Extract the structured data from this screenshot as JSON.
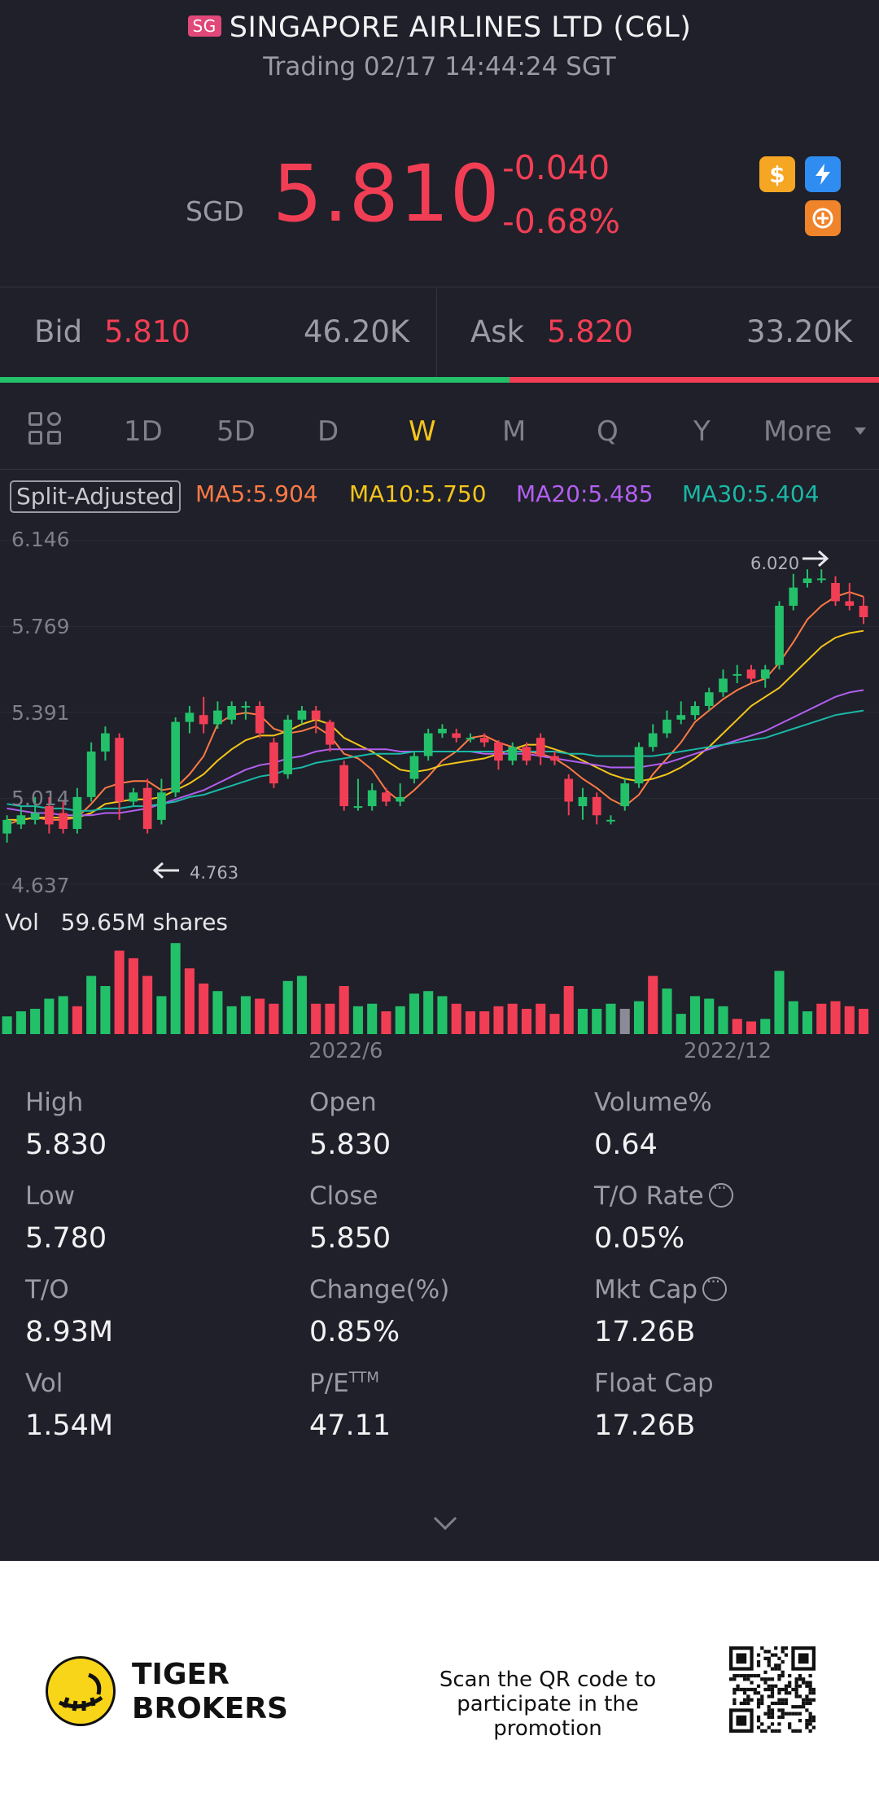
{
  "header": {
    "exchange_badge": "SG",
    "title": "SINGAPORE AIRLINES LTD (C6L)",
    "subtitle": "Trading 02/17 14:44:24 SGT"
  },
  "quote": {
    "currency": "SGD",
    "price": "5.810",
    "change": "-0.040",
    "change_pct": "-0.68%",
    "icons": [
      "dollar-icon",
      "flash-icon",
      "short-sell-icon"
    ]
  },
  "orderbook": {
    "bid_label": "Bid",
    "bid_price": "5.810",
    "bid_size": "46.20K",
    "ask_label": "Ask",
    "ask_price": "5.820",
    "ask_size": "33.20K",
    "bid_ratio": 0.58
  },
  "tabs": {
    "items": [
      "1D",
      "5D",
      "D",
      "W",
      "M",
      "Q",
      "Y"
    ],
    "active": "W",
    "more_label": "More"
  },
  "indicators": {
    "split_label": "Split-Adjusted",
    "ma5": "MA5:5.904",
    "ma10": "MA10:5.750",
    "ma20": "MA20:5.485",
    "ma30": "MA30:5.404"
  },
  "chart_labels": {
    "y_ticks": [
      "6.146",
      "5.769",
      "5.391",
      "5.014",
      "4.637"
    ],
    "high_marker": "6.020",
    "low_marker": "4.763",
    "vol_label": "Vol",
    "vol_value": "59.65M shares",
    "x_ticks": [
      "2022/6",
      "2022/12"
    ]
  },
  "chart_data": {
    "type": "candlestick",
    "ylim": [
      4.637,
      6.146
    ],
    "y_ticks": [
      6.146,
      5.769,
      5.391,
      5.014,
      4.637
    ],
    "x_ticks": [
      "2022/6",
      "2022/12"
    ],
    "candles": [
      [
        4.86,
        4.92,
        4.82,
        4.94
      ],
      [
        4.9,
        4.94,
        4.88,
        4.98
      ],
      [
        4.92,
        4.95,
        4.9,
        5.02
      ],
      [
        4.98,
        4.9,
        4.86,
        5.02
      ],
      [
        4.95,
        4.88,
        4.86,
        5.0
      ],
      [
        4.88,
        5.02,
        4.86,
        5.06
      ],
      [
        5.02,
        5.22,
        5.0,
        5.26
      ],
      [
        5.22,
        5.3,
        5.18,
        5.33
      ],
      [
        5.28,
        5.0,
        4.92,
        5.3
      ],
      [
        5.0,
        5.04,
        4.98,
        5.06
      ],
      [
        5.06,
        4.88,
        4.86,
        5.1
      ],
      [
        4.92,
        5.04,
        4.9,
        5.1
      ],
      [
        5.04,
        5.35,
        5.02,
        5.37
      ],
      [
        5.35,
        5.39,
        5.3,
        5.42
      ],
      [
        5.38,
        5.34,
        5.3,
        5.46
      ],
      [
        5.34,
        5.4,
        5.32,
        5.44
      ],
      [
        5.36,
        5.42,
        5.34,
        5.44
      ],
      [
        5.42,
        5.42,
        5.36,
        5.44
      ],
      [
        5.42,
        5.3,
        5.28,
        5.44
      ],
      [
        5.26,
        5.08,
        5.06,
        5.28
      ],
      [
        5.12,
        5.36,
        5.1,
        5.38
      ],
      [
        5.36,
        5.4,
        5.34,
        5.42
      ],
      [
        5.4,
        5.36,
        5.3,
        5.42
      ],
      [
        5.35,
        5.25,
        5.22,
        5.36
      ],
      [
        5.16,
        4.98,
        4.96,
        5.18
      ],
      [
        4.98,
        4.98,
        4.96,
        5.1
      ],
      [
        4.98,
        5.05,
        4.96,
        5.08
      ],
      [
        5.04,
        5.0,
        4.98,
        5.06
      ],
      [
        5.0,
        5.02,
        4.98,
        5.08
      ],
      [
        5.1,
        5.2,
        5.08,
        5.22
      ],
      [
        5.2,
        5.3,
        5.18,
        5.32
      ],
      [
        5.3,
        5.32,
        5.28,
        5.34
      ],
      [
        5.3,
        5.28,
        5.26,
        5.32
      ],
      [
        5.28,
        5.28,
        5.26,
        5.3
      ],
      [
        5.28,
        5.26,
        5.24,
        5.3
      ],
      [
        5.26,
        5.18,
        5.14,
        5.27
      ],
      [
        5.18,
        5.24,
        5.16,
        5.26
      ],
      [
        5.24,
        5.18,
        5.16,
        5.26
      ],
      [
        5.28,
        5.2,
        5.16,
        5.3
      ],
      [
        5.2,
        5.18,
        5.16,
        5.22
      ],
      [
        5.1,
        5.0,
        4.94,
        5.12
      ],
      [
        4.98,
        5.02,
        4.92,
        5.06
      ],
      [
        5.02,
        4.94,
        4.9,
        5.04
      ],
      [
        4.92,
        4.92,
        4.9,
        4.94
      ],
      [
        4.98,
        5.08,
        4.96,
        5.1
      ],
      [
        5.08,
        5.24,
        5.06,
        5.26
      ],
      [
        5.24,
        5.3,
        5.22,
        5.34
      ],
      [
        5.3,
        5.36,
        5.28,
        5.4
      ],
      [
        5.36,
        5.38,
        5.34,
        5.44
      ],
      [
        5.38,
        5.42,
        5.36,
        5.44
      ],
      [
        5.42,
        5.48,
        5.4,
        5.5
      ],
      [
        5.48,
        5.54,
        5.46,
        5.58
      ],
      [
        5.56,
        5.56,
        5.52,
        5.6
      ],
      [
        5.58,
        5.54,
        5.52,
        5.6
      ],
      [
        5.54,
        5.58,
        5.5,
        5.6
      ],
      [
        5.6,
        5.86,
        5.58,
        5.88
      ],
      [
        5.86,
        5.94,
        5.84,
        6.0
      ],
      [
        5.96,
        5.98,
        5.94,
        6.02
      ],
      [
        5.98,
        5.98,
        5.96,
        6.02
      ],
      [
        5.96,
        5.88,
        5.86,
        5.99
      ],
      [
        5.88,
        5.86,
        5.84,
        5.96
      ],
      [
        5.86,
        5.81,
        5.78,
        5.9
      ]
    ],
    "volume": [
      [
        0.7,
        "g"
      ],
      [
        0.9,
        "g"
      ],
      [
        1.0,
        "g"
      ],
      [
        1.4,
        "g"
      ],
      [
        1.5,
        "g"
      ],
      [
        1.1,
        "r"
      ],
      [
        2.3,
        "g"
      ],
      [
        1.9,
        "g"
      ],
      [
        3.3,
        "r"
      ],
      [
        3.0,
        "r"
      ],
      [
        2.3,
        "r"
      ],
      [
        1.5,
        "g"
      ],
      [
        3.6,
        "g"
      ],
      [
        2.6,
        "r"
      ],
      [
        2.0,
        "r"
      ],
      [
        1.7,
        "g"
      ],
      [
        1.1,
        "g"
      ],
      [
        1.5,
        "g"
      ],
      [
        1.4,
        "r"
      ],
      [
        1.2,
        "r"
      ],
      [
        2.1,
        "g"
      ],
      [
        2.3,
        "g"
      ],
      [
        1.2,
        "r"
      ],
      [
        1.2,
        "r"
      ],
      [
        1.9,
        "r"
      ],
      [
        1.1,
        "g"
      ],
      [
        1.2,
        "g"
      ],
      [
        0.9,
        "r"
      ],
      [
        1.1,
        "g"
      ],
      [
        1.6,
        "g"
      ],
      [
        1.7,
        "g"
      ],
      [
        1.5,
        "g"
      ],
      [
        1.2,
        "r"
      ],
      [
        0.9,
        "r"
      ],
      [
        0.9,
        "r"
      ],
      [
        1.1,
        "r"
      ],
      [
        1.2,
        "r"
      ],
      [
        1.0,
        "r"
      ],
      [
        1.2,
        "r"
      ],
      [
        0.8,
        "r"
      ],
      [
        1.9,
        "r"
      ],
      [
        1.0,
        "g"
      ],
      [
        1.0,
        "g"
      ],
      [
        1.2,
        "g"
      ],
      [
        1.0,
        "n"
      ],
      [
        1.3,
        "g"
      ],
      [
        2.3,
        "r"
      ],
      [
        1.8,
        "g"
      ],
      [
        0.8,
        "g"
      ],
      [
        1.5,
        "g"
      ],
      [
        1.4,
        "g"
      ],
      [
        1.1,
        "g"
      ],
      [
        0.6,
        "r"
      ],
      [
        0.5,
        "r"
      ],
      [
        0.6,
        "g"
      ],
      [
        2.5,
        "g"
      ],
      [
        1.3,
        "g"
      ],
      [
        0.9,
        "g"
      ],
      [
        1.2,
        "r"
      ],
      [
        1.3,
        "r"
      ],
      [
        1.1,
        "r"
      ],
      [
        1.0,
        "r"
      ]
    ],
    "ma_series": {
      "ma5": {
        "color": "#ff7a45",
        "values": [
          4.9,
          4.92,
          4.93,
          4.92,
          4.92,
          4.93,
          4.99,
          5.06,
          5.08,
          5.09,
          5.09,
          5.05,
          5.06,
          5.12,
          5.2,
          5.34,
          5.38,
          5.39,
          5.38,
          5.32,
          5.3,
          5.31,
          5.33,
          5.29,
          5.21,
          5.19,
          5.14,
          5.05,
          5.0,
          5.05,
          5.11,
          5.18,
          5.22,
          5.28,
          5.29,
          5.26,
          5.24,
          5.22,
          5.21,
          5.19,
          5.15,
          5.1,
          5.06,
          5.01,
          4.98,
          5.03,
          5.12,
          5.19,
          5.26,
          5.35,
          5.4,
          5.45,
          5.49,
          5.52,
          5.54,
          5.61,
          5.7,
          5.8,
          5.86,
          5.9,
          5.92,
          5.9
        ]
      },
      "ma10": {
        "color": "#f5c51b",
        "values": [
          4.92,
          4.92,
          4.93,
          4.93,
          4.93,
          4.93,
          4.95,
          4.99,
          5.0,
          5.01,
          5.01,
          5.02,
          5.05,
          5.08,
          5.12,
          5.18,
          5.23,
          5.27,
          5.29,
          5.29,
          5.31,
          5.34,
          5.36,
          5.34,
          5.28,
          5.25,
          5.22,
          5.18,
          5.14,
          5.13,
          5.14,
          5.16,
          5.17,
          5.18,
          5.19,
          5.21,
          5.23,
          5.25,
          5.25,
          5.23,
          5.21,
          5.18,
          5.15,
          5.12,
          5.1,
          5.09,
          5.1,
          5.12,
          5.15,
          5.19,
          5.24,
          5.3,
          5.36,
          5.42,
          5.46,
          5.5,
          5.56,
          5.62,
          5.68,
          5.72,
          5.74,
          5.75
        ]
      },
      "ma20": {
        "color": "#b35ff0",
        "values": [
          4.97,
          4.96,
          4.95,
          4.95,
          4.94,
          4.94,
          4.94,
          4.95,
          4.95,
          4.96,
          4.97,
          4.99,
          5.01,
          5.03,
          5.05,
          5.08,
          5.11,
          5.14,
          5.16,
          5.17,
          5.19,
          5.2,
          5.22,
          5.23,
          5.23,
          5.23,
          5.23,
          5.23,
          5.22,
          5.22,
          5.22,
          5.22,
          5.22,
          5.22,
          5.21,
          5.21,
          5.21,
          5.21,
          5.2,
          5.19,
          5.18,
          5.17,
          5.16,
          5.15,
          5.15,
          5.15,
          5.16,
          5.17,
          5.19,
          5.21,
          5.23,
          5.25,
          5.27,
          5.29,
          5.31,
          5.34,
          5.37,
          5.4,
          5.43,
          5.46,
          5.48,
          5.49
        ]
      },
      "ma30": {
        "color": "#1ab8a6",
        "values": [
          4.99,
          4.98,
          4.98,
          4.97,
          4.97,
          4.96,
          4.96,
          4.97,
          4.97,
          4.98,
          4.98,
          4.99,
          5.0,
          5.02,
          5.03,
          5.05,
          5.07,
          5.09,
          5.11,
          5.12,
          5.14,
          5.15,
          5.17,
          5.18,
          5.19,
          5.2,
          5.21,
          5.21,
          5.21,
          5.22,
          5.22,
          5.22,
          5.22,
          5.22,
          5.22,
          5.22,
          5.22,
          5.22,
          5.22,
          5.22,
          5.21,
          5.21,
          5.2,
          5.2,
          5.2,
          5.2,
          5.2,
          5.21,
          5.22,
          5.23,
          5.24,
          5.25,
          5.26,
          5.27,
          5.28,
          5.3,
          5.32,
          5.34,
          5.36,
          5.38,
          5.39,
          5.4
        ]
      }
    }
  },
  "stats": {
    "high_label": "High",
    "high": "5.830",
    "open_label": "Open",
    "open": "5.830",
    "volpct_label": "Volume%",
    "volpct": "0.64",
    "low_label": "Low",
    "low": "5.780",
    "close_label": "Close",
    "close": "5.850",
    "torate_label": "T/O Rate",
    "torate": "0.05%",
    "to_label": "T/O",
    "to": "8.93M",
    "changepct_label": "Change(%)",
    "changepct": "0.85%",
    "mktcap_label": "Mkt Cap",
    "mktcap": "17.26B",
    "vol_label": "Vol",
    "vol": "1.54M",
    "pe_label": "P/E",
    "pe_sup": "TTM",
    "pe": "47.11",
    "floatcap_label": "Float Cap",
    "floatcap": "17.26B"
  },
  "footer": {
    "brand_line1": "TIGER",
    "brand_line2": "BROKERS",
    "promo_line1": "Scan the QR code to",
    "promo_line2": "participate in the promotion"
  },
  "colors": {
    "up": "#23c06a",
    "down": "#f23e55",
    "neutral": "#8a8b96",
    "accent": "#f5c51b",
    "bg": "#1f2029"
  }
}
